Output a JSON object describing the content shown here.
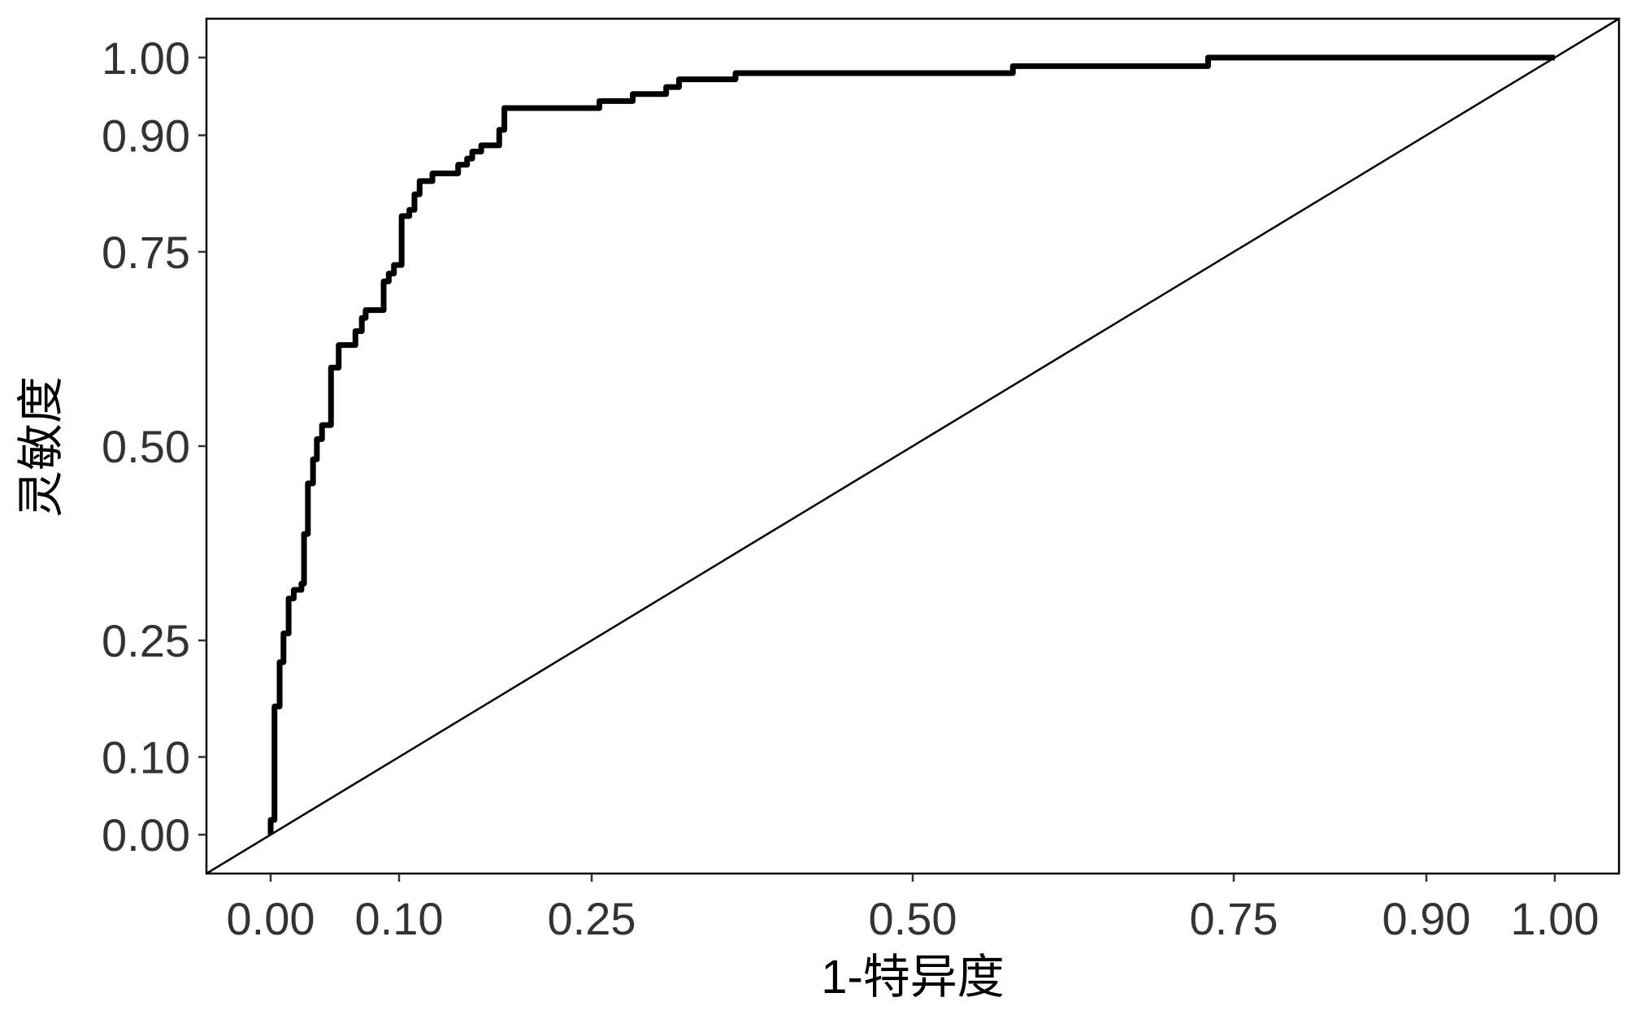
{
  "chart_data": {
    "type": "line",
    "x_label": "1-特异度",
    "y_label": "灵敏度",
    "xlim": [
      -0.05,
      1.05
    ],
    "ylim": [
      -0.05,
      1.05
    ],
    "xticks": [
      {
        "value": 0,
        "label": "0.00"
      },
      {
        "value": 0.1,
        "label": "0.10"
      },
      {
        "value": 0.25,
        "label": "0.25"
      },
      {
        "value": 0.5,
        "label": "0.50"
      },
      {
        "value": 0.75,
        "label": "0.75"
      },
      {
        "value": 0.9,
        "label": "0.90"
      },
      {
        "value": 1,
        "label": "1.00"
      }
    ],
    "yticks": [
      {
        "value": 0,
        "label": "0.00"
      },
      {
        "value": 0.1,
        "label": "0.10"
      },
      {
        "value": 0.25,
        "label": "0.25"
      },
      {
        "value": 0.5,
        "label": "0.50"
      },
      {
        "value": 0.75,
        "label": "0.75"
      },
      {
        "value": 0.9,
        "label": "0.90"
      },
      {
        "value": 1,
        "label": "1.00"
      }
    ],
    "grid": false,
    "diagonal": true,
    "series": [
      {
        "color": "#000000",
        "x": [
          0,
          0,
          0.003,
          0.003,
          0.007,
          0.007,
          0.01,
          0.01,
          0.014,
          0.014,
          0.018,
          0.018,
          0.024,
          0.024,
          0.026,
          0.026,
          0.029,
          0.029,
          0.033,
          0.033,
          0.036,
          0.036,
          0.04,
          0.04,
          0.047,
          0.047,
          0.053,
          0.053,
          0.066,
          0.066,
          0.071,
          0.071,
          0.074,
          0.074,
          0.088,
          0.088,
          0.092,
          0.092,
          0.096,
          0.096,
          0.102,
          0.102,
          0.108,
          0.108,
          0.112,
          0.112,
          0.116,
          0.116,
          0.126,
          0.126,
          0.146,
          0.146,
          0.153,
          0.153,
          0.157,
          0.157,
          0.164,
          0.164,
          0.178,
          0.178,
          0.182,
          0.182,
          0.256,
          0.256,
          0.282,
          0.282,
          0.308,
          0.308,
          0.318,
          0.318,
          0.362,
          0.362,
          0.578,
          0.578,
          0.73,
          0.73,
          1
        ],
        "values": [
          0,
          0.019,
          0.019,
          0.165,
          0.165,
          0.222,
          0.222,
          0.259,
          0.259,
          0.304,
          0.304,
          0.315,
          0.315,
          0.323,
          0.323,
          0.387,
          0.387,
          0.452,
          0.452,
          0.483,
          0.483,
          0.509,
          0.509,
          0.527,
          0.527,
          0.601,
          0.601,
          0.63,
          0.63,
          0.648,
          0.648,
          0.665,
          0.665,
          0.675,
          0.675,
          0.712,
          0.712,
          0.722,
          0.722,
          0.733,
          0.733,
          0.796,
          0.796,
          0.804,
          0.804,
          0.824,
          0.824,
          0.841,
          0.841,
          0.851,
          0.851,
          0.862,
          0.862,
          0.87,
          0.87,
          0.879,
          0.879,
          0.887,
          0.887,
          0.907,
          0.907,
          0.935,
          0.935,
          0.944,
          0.944,
          0.953,
          0.953,
          0.962,
          0.962,
          0.972,
          0.972,
          0.98,
          0.98,
          0.989,
          0.989,
          1,
          1
        ]
      }
    ]
  }
}
